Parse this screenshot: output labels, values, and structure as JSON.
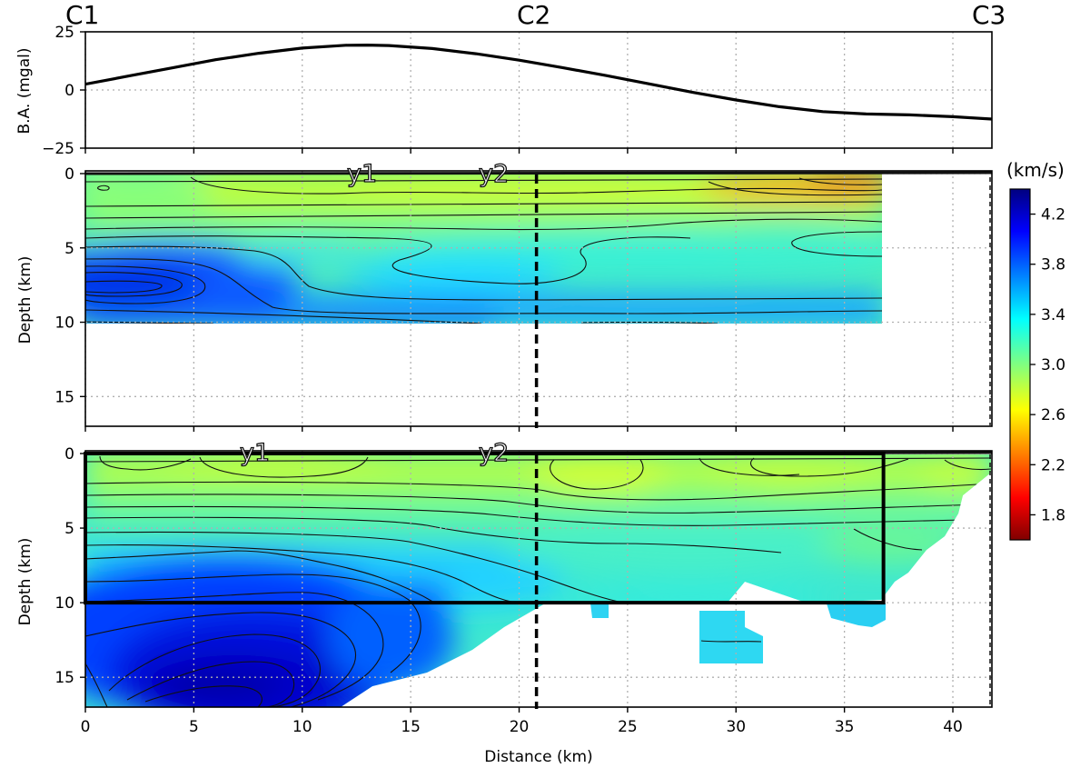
{
  "figure": {
    "profile_labels": [
      "C1",
      "C2",
      "C3"
    ],
    "xlabel": "Distance (km)",
    "x_ticks": [
      0,
      5,
      10,
      15,
      20,
      25,
      30,
      35,
      40
    ],
    "xlim": [
      0,
      41.8
    ],
    "section_divider_km": 20.8
  },
  "chart_data": [
    {
      "type": "line",
      "panel": "gravity",
      "ylabel": "B.A. (mgal)",
      "ylim": [
        -25,
        25
      ],
      "y_ticks": [
        25,
        0,
        -25
      ],
      "x_ticks": [
        0,
        5,
        10,
        15,
        20,
        25,
        30,
        35,
        40
      ],
      "series": [
        {
          "name": "Bouguer anomaly",
          "x": [
            0,
            2,
            4,
            6,
            8,
            10,
            12,
            13,
            14,
            16,
            18,
            20,
            22,
            24,
            26,
            28,
            30,
            32,
            34,
            36,
            38,
            40,
            41.8
          ],
          "y": [
            2.5,
            6,
            9.5,
            13,
            15.8,
            18,
            19.2,
            19.3,
            19.1,
            17.8,
            15.6,
            12.8,
            9.6,
            6.2,
            2.6,
            -1,
            -4.3,
            -7.2,
            -9.3,
            -10.3,
            -10.7,
            -11.5,
            -12.5
          ]
        }
      ]
    },
    {
      "type": "heatmap",
      "panel": "velocity model (upper)",
      "ylabel": "Depth (km)",
      "ylim": [
        17,
        0
      ],
      "y_ticks": [
        0,
        5,
        10,
        15
      ],
      "x_ticks": [
        0,
        5,
        10,
        15,
        20,
        25,
        30,
        35,
        40
      ],
      "x_extent": [
        0,
        36.8
      ],
      "depth_extent": [
        0,
        10
      ],
      "annotations": [
        "y1",
        "y2"
      ],
      "annotation_x": [
        13,
        19
      ],
      "features": [
        {
          "desc": "high-velocity body",
          "x": 2,
          "z": 7.3,
          "value": 4.0
        },
        {
          "desc": "low-velocity near surface",
          "x": 34,
          "z": 0.5,
          "value": 2.3
        }
      ]
    },
    {
      "type": "heatmap",
      "panel": "velocity model (lower)",
      "ylabel": "Depth (km)",
      "ylim": [
        17,
        0
      ],
      "y_ticks": [
        0,
        5,
        10,
        15
      ],
      "x_ticks": [
        0,
        5,
        10,
        15,
        20,
        25,
        30,
        35,
        40
      ],
      "x_extent": [
        0,
        41.8
      ],
      "depth_extent": [
        0,
        17
      ],
      "annotations": [
        "y1",
        "y2"
      ],
      "annotation_x": [
        8,
        19
      ],
      "outlined_region": {
        "x": [
          0,
          36.8
        ],
        "depth": [
          0,
          10
        ]
      },
      "features": [
        {
          "desc": "deep high-velocity body",
          "x": 7,
          "z": 15.5,
          "value": 4.3
        },
        {
          "desc": "shallow low-velocity zone",
          "x": 24,
          "z": 1,
          "value": 2.8
        }
      ]
    },
    {
      "type": "colorbar",
      "title": "(km/s)",
      "range": [
        1.6,
        4.4
      ],
      "ticks": [
        "4.2",
        "3.8",
        "3.4",
        "3.0",
        "2.6",
        "2.2",
        "1.8"
      ],
      "colormap": "jet_r"
    }
  ]
}
